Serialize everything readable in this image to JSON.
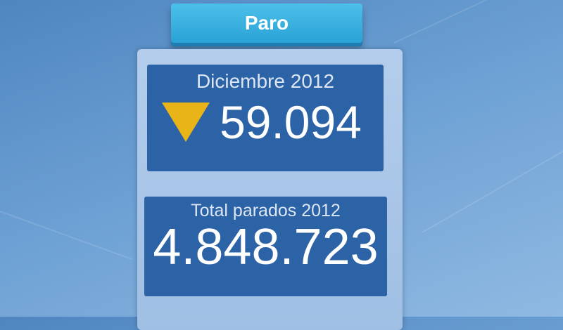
{
  "title": "Paro",
  "monthly": {
    "label": "Diciembre 2012",
    "value": "59.094",
    "trend": "down",
    "trend_color": "#e8b417"
  },
  "total": {
    "label": "Total parados 2012",
    "value": "4.848.723"
  }
}
